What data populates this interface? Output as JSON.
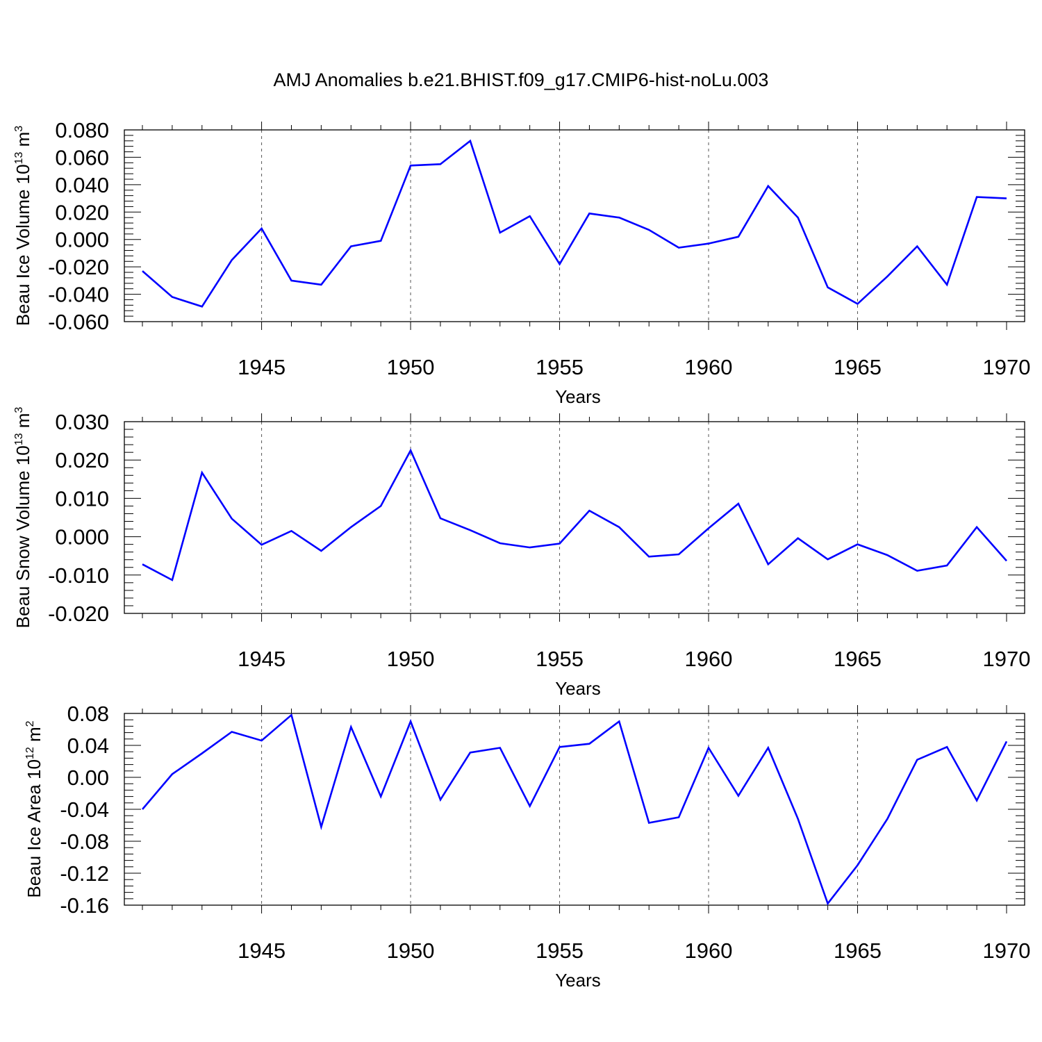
{
  "page_title": "AMJ Anomalies b.e21.BHIST.f09_g17.CMIP6-hist-noLu.003",
  "colors": {
    "series": "#0000ff",
    "axes": "#000000",
    "grid": "#555555"
  },
  "chart_data": [
    {
      "type": "line",
      "ylabel_prefix": "Beau Ice Volume 10",
      "ylabel_exponent": "13",
      "ylabel_unit": " m",
      "ylabel_unit_exponent": "3",
      "xlabel": "Years",
      "xlim": [
        1941,
        1970
      ],
      "ylim": [
        -0.06,
        0.08
      ],
      "xticks": [
        1945,
        1950,
        1955,
        1960,
        1965,
        1970
      ],
      "xtick_labels": [
        "1945",
        "1950",
        "1955",
        "1960",
        "1965",
        "1970"
      ],
      "yticks": [
        -0.06,
        -0.04,
        -0.02,
        0.0,
        0.02,
        0.04,
        0.06,
        0.08
      ],
      "ytick_labels": [
        "-0.060",
        "-0.040",
        "-0.020",
        "0.000",
        "0.020",
        "0.040",
        "0.060",
        "0.080"
      ],
      "grid": "vertical dashed at major x ticks",
      "x": [
        1941,
        1942,
        1943,
        1944,
        1945,
        1946,
        1947,
        1948,
        1949,
        1950,
        1951,
        1952,
        1953,
        1954,
        1955,
        1956,
        1957,
        1958,
        1959,
        1960,
        1961,
        1962,
        1963,
        1964,
        1965,
        1966,
        1967,
        1968,
        1969,
        1970
      ],
      "values": [
        -0.023,
        -0.042,
        -0.049,
        -0.015,
        0.008,
        -0.03,
        -0.033,
        -0.005,
        -0.001,
        0.054,
        0.055,
        0.072,
        0.005,
        0.017,
        -0.018,
        0.019,
        0.016,
        0.007,
        -0.006,
        -0.003,
        0.002,
        0.039,
        0.016,
        -0.035,
        -0.047,
        -0.027,
        -0.005,
        -0.033,
        0.031,
        0.03
      ]
    },
    {
      "type": "line",
      "ylabel_prefix": "Beau Snow Volume 10",
      "ylabel_exponent": "13",
      "ylabel_unit": " m",
      "ylabel_unit_exponent": "3",
      "xlabel": "Years",
      "xlim": [
        1941,
        1970
      ],
      "ylim": [
        -0.02,
        0.03
      ],
      "xticks": [
        1945,
        1950,
        1955,
        1960,
        1965,
        1970
      ],
      "xtick_labels": [
        "1945",
        "1950",
        "1955",
        "1960",
        "1965",
        "1970"
      ],
      "yticks": [
        -0.02,
        -0.01,
        0.0,
        0.01,
        0.02,
        0.03
      ],
      "ytick_labels": [
        "-0.020",
        "-0.010",
        "0.000",
        "0.010",
        "0.020",
        "0.030"
      ],
      "grid": "vertical dashed at major x ticks",
      "x": [
        1941,
        1942,
        1943,
        1944,
        1945,
        1946,
        1947,
        1948,
        1949,
        1950,
        1951,
        1952,
        1953,
        1954,
        1955,
        1956,
        1957,
        1958,
        1959,
        1960,
        1961,
        1962,
        1963,
        1964,
        1965,
        1966,
        1967,
        1968,
        1969,
        1970
      ],
      "values": [
        -0.0072,
        -0.0113,
        0.0167,
        0.0047,
        -0.0021,
        0.0015,
        -0.0037,
        0.0025,
        0.008,
        0.0225,
        0.0048,
        0.0017,
        -0.0017,
        -0.0028,
        -0.0018,
        0.0068,
        0.0025,
        -0.0052,
        -0.0046,
        0.0022,
        0.0086,
        -0.0072,
        -0.0004,
        -0.0059,
        -0.002,
        -0.0048,
        -0.0089,
        -0.0075,
        0.0025,
        -0.0063
      ]
    },
    {
      "type": "line",
      "ylabel_prefix": "Beau Ice Area 10",
      "ylabel_exponent": "12",
      "ylabel_unit": " m",
      "ylabel_unit_exponent": "2",
      "xlabel": "Years",
      "xlim": [
        1941,
        1970
      ],
      "ylim": [
        -0.16,
        0.08
      ],
      "xticks": [
        1945,
        1950,
        1955,
        1960,
        1965,
        1970
      ],
      "xtick_labels": [
        "1945",
        "1950",
        "1955",
        "1960",
        "1965",
        "1970"
      ],
      "yticks": [
        -0.16,
        -0.12,
        -0.08,
        -0.04,
        0.0,
        0.04,
        0.08
      ],
      "ytick_labels": [
        "-0.16",
        "-0.12",
        "-0.08",
        "-0.04",
        "0.00",
        "0.04",
        "0.08"
      ],
      "grid": "vertical dashed at major x ticks",
      "x": [
        1941,
        1942,
        1943,
        1944,
        1945,
        1946,
        1947,
        1948,
        1949,
        1950,
        1951,
        1952,
        1953,
        1954,
        1955,
        1956,
        1957,
        1958,
        1959,
        1960,
        1961,
        1962,
        1963,
        1964,
        1965,
        1966,
        1967,
        1968,
        1969,
        1970
      ],
      "values": [
        -0.04,
        0.004,
        0.03,
        0.057,
        0.046,
        0.078,
        -0.062,
        0.063,
        -0.024,
        0.07,
        -0.028,
        0.031,
        0.037,
        -0.036,
        0.038,
        0.042,
        0.07,
        -0.057,
        -0.05,
        0.037,
        -0.023,
        0.037,
        -0.052,
        -0.158,
        -0.11,
        -0.052,
        0.022,
        0.038,
        -0.029,
        0.045
      ]
    }
  ]
}
